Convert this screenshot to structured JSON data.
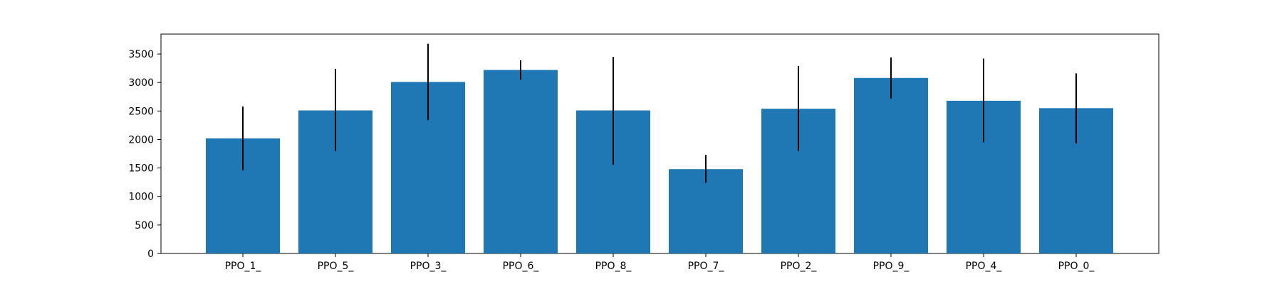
{
  "chart_data": {
    "type": "bar",
    "title": "",
    "xlabel": "",
    "ylabel": "",
    "categories": [
      "PPO_1_",
      "PPO_5_",
      "PPO_3_",
      "PPO_6_",
      "PPO_8_",
      "PPO_7_",
      "PPO_2_",
      "PPO_9_",
      "PPO_4_",
      "PPO_0_"
    ],
    "values": [
      2020,
      2510,
      3010,
      3220,
      2510,
      1480,
      2540,
      3080,
      2680,
      2550
    ],
    "error_low": [
      1460,
      1800,
      2340,
      3050,
      1560,
      1240,
      1800,
      2720,
      1950,
      1930
    ],
    "error_high": [
      2580,
      3240,
      3680,
      3390,
      3450,
      1730,
      3290,
      3440,
      3420,
      3160
    ],
    "ylim": [
      0,
      3850
    ],
    "yticks": [
      0,
      500,
      1000,
      1500,
      2000,
      2500,
      3000,
      3500
    ],
    "grid": false,
    "legend": "none",
    "bar_color": "#1f77b4",
    "error_color": "#000000"
  }
}
